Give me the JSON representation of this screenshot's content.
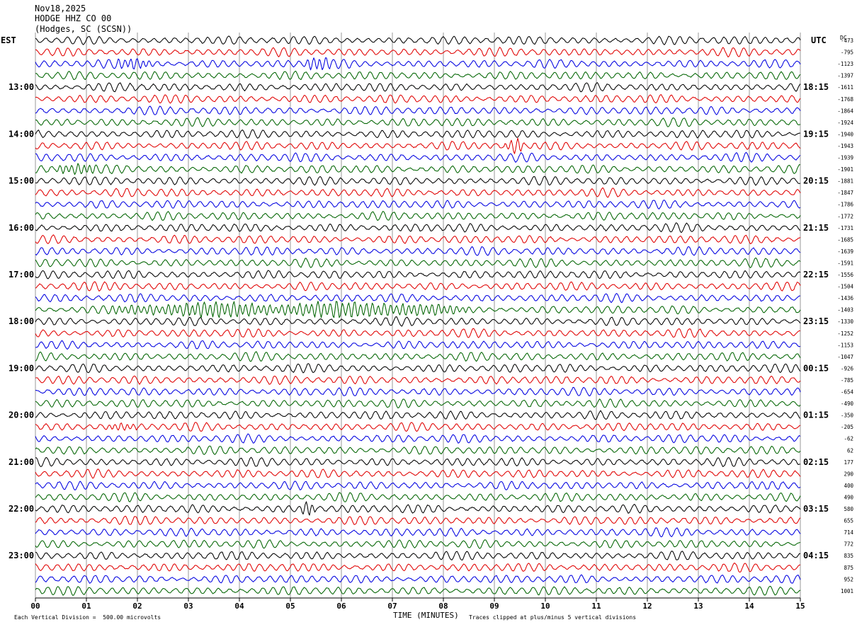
{
  "header": {
    "date": "Nov18,2025",
    "station": "HODGE HHZ CO 00",
    "location": "(Hodges, SC (SCSN))"
  },
  "left_tz": "EST",
  "right_tz": "UTC",
  "dc_label": "DC",
  "footer": {
    "scale_note": "Each Vertical Division =  500.00 microvolts",
    "clip_note": "Traces clipped at plus/minus 5 vertical divisions"
  },
  "colors": {
    "trace_cycle": [
      "#000000",
      "#e00000",
      "#0000e0",
      "#006400"
    ],
    "grid": "#9a9a9a"
  },
  "chart_data": {
    "type": "line",
    "subtype": "helicorder",
    "xlabel": "TIME (MINUTES)",
    "xlim": [
      0,
      15
    ],
    "x_ticks": [
      "00",
      "01",
      "02",
      "03",
      "04",
      "05",
      "06",
      "07",
      "08",
      "09",
      "10",
      "11",
      "12",
      "13",
      "14",
      "15"
    ],
    "rows_per_hour": 4,
    "row_minutes": 15,
    "left_hour_labels": [
      "13:00",
      "14:00",
      "15:00",
      "16:00",
      "17:00",
      "18:00",
      "19:00",
      "20:00",
      "21:00",
      "22:00",
      "23:00"
    ],
    "right_hour_labels": [
      "18:15",
      "19:15",
      "20:15",
      "21:15",
      "22:15",
      "23:15",
      "00:15",
      "01:15",
      "02:15",
      "03:15",
      "04:15"
    ],
    "first_labeled_row": 4,
    "dc_offsets": [
      "-473",
      "-795",
      "-1123",
      "-1397",
      "-1611",
      "-1768",
      "-1864",
      "-1924",
      "-1940",
      "-1943",
      "-1939",
      "-1901",
      "-1881",
      "-1847",
      "-1786",
      "-1772",
      "-1731",
      "-1685",
      "-1639",
      "-1591",
      "-1556",
      "-1504",
      "-1436",
      "-1403",
      "-1330",
      "-1252",
      "-1153",
      "-1047",
      "-926",
      "-785",
      "-654",
      "-490",
      "-350",
      "-205",
      "-62",
      "62",
      "177",
      "290",
      "400",
      "490",
      "580",
      "655",
      "714",
      "772",
      "835",
      "875",
      "952",
      "1001"
    ],
    "events": [
      {
        "row": 2,
        "minute_start": 1.6,
        "minute_end": 2.3,
        "amplitude": 1.3
      },
      {
        "row": 2,
        "minute_start": 5.3,
        "minute_end": 5.8,
        "amplitude": 1.4
      },
      {
        "row": 9,
        "minute_start": 9.2,
        "minute_end": 9.6,
        "amplitude": 1.7
      },
      {
        "row": 11,
        "minute_start": 0.4,
        "minute_end": 1.2,
        "amplitude": 1.3
      },
      {
        "row": 23,
        "minute_start": 1.5,
        "minute_end": 8.5,
        "amplitude": 1.7
      },
      {
        "row": 33,
        "minute_start": 1.4,
        "minute_end": 2.0,
        "amplitude": 1.3
      },
      {
        "row": 40,
        "minute_start": 5.2,
        "minute_end": 5.5,
        "amplitude": 1.5
      }
    ]
  }
}
